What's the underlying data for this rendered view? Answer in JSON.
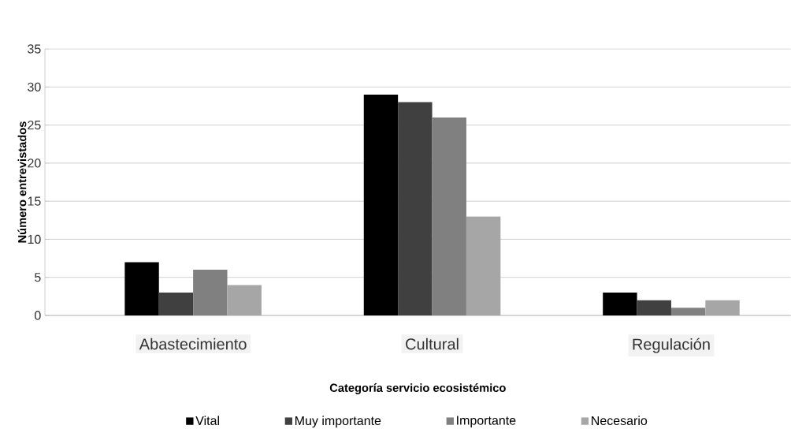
{
  "chart_data": {
    "type": "bar",
    "xlabel": "Categoría servicio ecosistémico",
    "ylabel": "Número entrevistados",
    "categories": [
      "Abastecimiento",
      "Cultural",
      "Regulación"
    ],
    "series": [
      {
        "name": "Vital",
        "color": "#000000",
        "values": [
          7,
          29,
          3
        ]
      },
      {
        "name": "Muy importante",
        "color": "#404040",
        "values": [
          3,
          28,
          2
        ]
      },
      {
        "name": "Importante",
        "color": "#808080",
        "values": [
          6,
          26,
          1
        ]
      },
      {
        "name": "Necesario",
        "color": "#a6a6a6",
        "values": [
          4,
          13,
          2
        ]
      }
    ],
    "ylim": [
      0,
      35
    ],
    "yticks": [
      0,
      5,
      10,
      15,
      20,
      25,
      30,
      35
    ],
    "grid": "y",
    "legend": "bottom"
  }
}
